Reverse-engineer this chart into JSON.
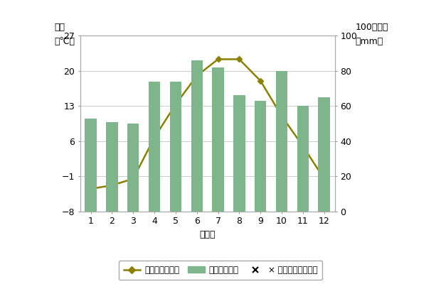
{
  "months": [
    1,
    2,
    3,
    4,
    5,
    6,
    7,
    8,
    9,
    10,
    11,
    12
  ],
  "month_labels": [
    "1",
    "2",
    "3",
    "4",
    "5",
    "6",
    "7",
    "8",
    "9",
    "10",
    "11",
    "12"
  ],
  "temperature": [
    -3.5,
    -2.8,
    -1.5,
    6.7,
    13.3,
    19.0,
    22.3,
    22.3,
    18.0,
    11.0,
    5.0,
    -1.5
  ],
  "precipitation": [
    53,
    51,
    50,
    74,
    74,
    86,
    82,
    66,
    63,
    80,
    60,
    65
  ],
  "temp_ylim": [
    -8,
    27
  ],
  "temp_yticks": [
    -8,
    -1,
    6,
    13,
    20,
    27
  ],
  "precip_ylim": [
    0,
    100
  ],
  "precip_yticks": [
    0,
    20,
    40,
    60,
    80,
    100
  ],
  "bar_color": "#7EB58A",
  "line_color": "#8B8000",
  "xlabel": "（月）",
  "ylabel_left_1": "気温",
  "ylabel_left_2": "（℃）",
  "ylabel_right_1": "100降水量",
  "ylabel_right_2": "（mm）",
  "legend_temp": "平均気温平年値",
  "legend_precip": "降水量平年値",
  "legend_na": "× 値なし（降水量）",
  "bg_color": "#ffffff",
  "grid_color": "#cccccc",
  "axis_fontsize": 9,
  "label_fontsize": 9
}
